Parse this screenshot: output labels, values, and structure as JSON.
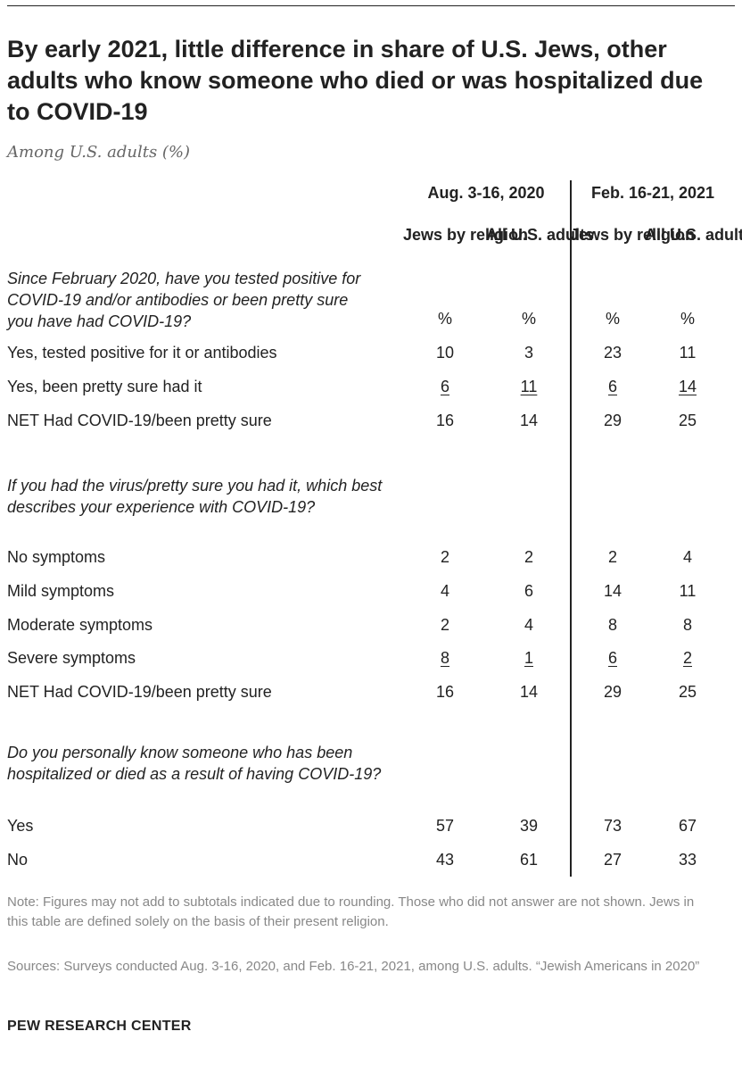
{
  "title": "By early 2021, little difference in share of U.S. Jews, other adults who know someone who died or was hospitalized due to COVID-19",
  "subtitle": "Among U.S. adults (%)",
  "periods": [
    {
      "label": "Aug. 3-16, 2020",
      "columns": [
        "Jews by religion",
        "All U.S. adults"
      ]
    },
    {
      "label": "Feb. 16-21, 2021",
      "columns": [
        "Jews by religion",
        "All U.S. adults"
      ]
    }
  ],
  "columns": [
    "Jews by religion",
    "All U.S. adults",
    "Jews by religion",
    "All U.S. adults"
  ],
  "unit_symbol": "%",
  "sections": [
    {
      "question": "Since February 2020, have you tested positive for COVID-19 and/or antibodies or been pretty sure you have had COVID-19?",
      "rows": [
        {
          "label": "Yes, tested positive for it or antibodies",
          "values": [
            "10",
            "3",
            "23",
            "11"
          ],
          "underline": false
        },
        {
          "label": "Yes, been pretty sure had it",
          "values": [
            "6",
            "11",
            "6",
            "14"
          ],
          "underline": true
        },
        {
          "label": "NET Had COVID-19/been pretty sure",
          "values": [
            "16",
            "14",
            "29",
            "25"
          ],
          "underline": false
        }
      ]
    },
    {
      "question": "If you had the virus/pretty sure you had it, which best describes your experience with COVID-19?",
      "rows": [
        {
          "label": "No symptoms",
          "values": [
            "2",
            "2",
            "2",
            "4"
          ],
          "underline": false
        },
        {
          "label": "Mild symptoms",
          "values": [
            "4",
            "6",
            "14",
            "11"
          ],
          "underline": false
        },
        {
          "label": "Moderate symptoms",
          "values": [
            "2",
            "4",
            "8",
            "8"
          ],
          "underline": false
        },
        {
          "label": "Severe symptoms",
          "values": [
            "8",
            "1",
            "6",
            "2"
          ],
          "underline": true
        },
        {
          "label": "NET Had COVID-19/been pretty sure",
          "values": [
            "16",
            "14",
            "29",
            "25"
          ],
          "underline": false
        }
      ]
    },
    {
      "question": "Do you personally know someone who has been hospitalized or died as a result of having COVID-19?",
      "rows": [
        {
          "label": "Yes",
          "values": [
            "57",
            "39",
            "73",
            "67"
          ],
          "underline": false
        },
        {
          "label": "No",
          "values": [
            "43",
            "61",
            "27",
            "33"
          ],
          "underline": false
        }
      ]
    }
  ],
  "note": "Note: Figures may not add to subtotals indicated due to rounding. Those who did not answer are not shown. Jews in this table are defined solely on the basis of their present religion.",
  "source": "Sources: Surveys conducted Aug. 3-16, 2020, and Feb. 16-21, 2021, among U.S. adults. “Jewish Americans in 2020”",
  "brand": "PEW RESEARCH CENTER",
  "chart_data": {
    "type": "table",
    "title": "By early 2021, little difference in share of U.S. Jews, other adults who know someone who died or was hospitalized due to COVID-19",
    "subtitle": "Among U.S. adults (%)",
    "column_groups": [
      "Aug. 3-16, 2020",
      "Feb. 16-21, 2021"
    ],
    "columns": [
      "Jews by religion",
      "All U.S. adults",
      "Jews by religion",
      "All U.S. adults"
    ],
    "rows": [
      {
        "question": "Since February 2020, have you tested positive for COVID-19 and/or antibodies or been pretty sure you have had COVID-19?",
        "label": "Yes, tested positive for it or antibodies",
        "values": [
          10,
          3,
          23,
          11
        ]
      },
      {
        "question": "Since February 2020, have you tested positive for COVID-19 and/or antibodies or been pretty sure you have had COVID-19?",
        "label": "Yes, been pretty sure had it",
        "values": [
          6,
          11,
          6,
          14
        ]
      },
      {
        "question": "Since February 2020, have you tested positive for COVID-19 and/or antibodies or been pretty sure you have had COVID-19?",
        "label": "NET Had COVID-19/been pretty sure",
        "values": [
          16,
          14,
          29,
          25
        ]
      },
      {
        "question": "If you had the virus/pretty sure you had it, which best describes your experience with COVID-19?",
        "label": "No symptoms",
        "values": [
          2,
          2,
          2,
          4
        ]
      },
      {
        "question": "If you had the virus/pretty sure you had it, which best describes your experience with COVID-19?",
        "label": "Mild symptoms",
        "values": [
          4,
          6,
          14,
          11
        ]
      },
      {
        "question": "If you had the virus/pretty sure you had it, which best describes your experience with COVID-19?",
        "label": "Moderate symptoms",
        "values": [
          2,
          4,
          8,
          8
        ]
      },
      {
        "question": "If you had the virus/pretty sure you had it, which best describes your experience with COVID-19?",
        "label": "Severe symptoms",
        "values": [
          8,
          1,
          6,
          2
        ]
      },
      {
        "question": "If you had the virus/pretty sure you had it, which best describes your experience with COVID-19?",
        "label": "NET Had COVID-19/been pretty sure",
        "values": [
          16,
          14,
          29,
          25
        ]
      },
      {
        "question": "Do you personally know someone who has been hospitalized or died as a result of having COVID-19?",
        "label": "Yes",
        "values": [
          57,
          39,
          73,
          67
        ]
      },
      {
        "question": "Do you personally know someone who has been hospitalized or died as a result of having COVID-19?",
        "label": "No",
        "values": [
          43,
          61,
          27,
          33
        ]
      }
    ]
  }
}
